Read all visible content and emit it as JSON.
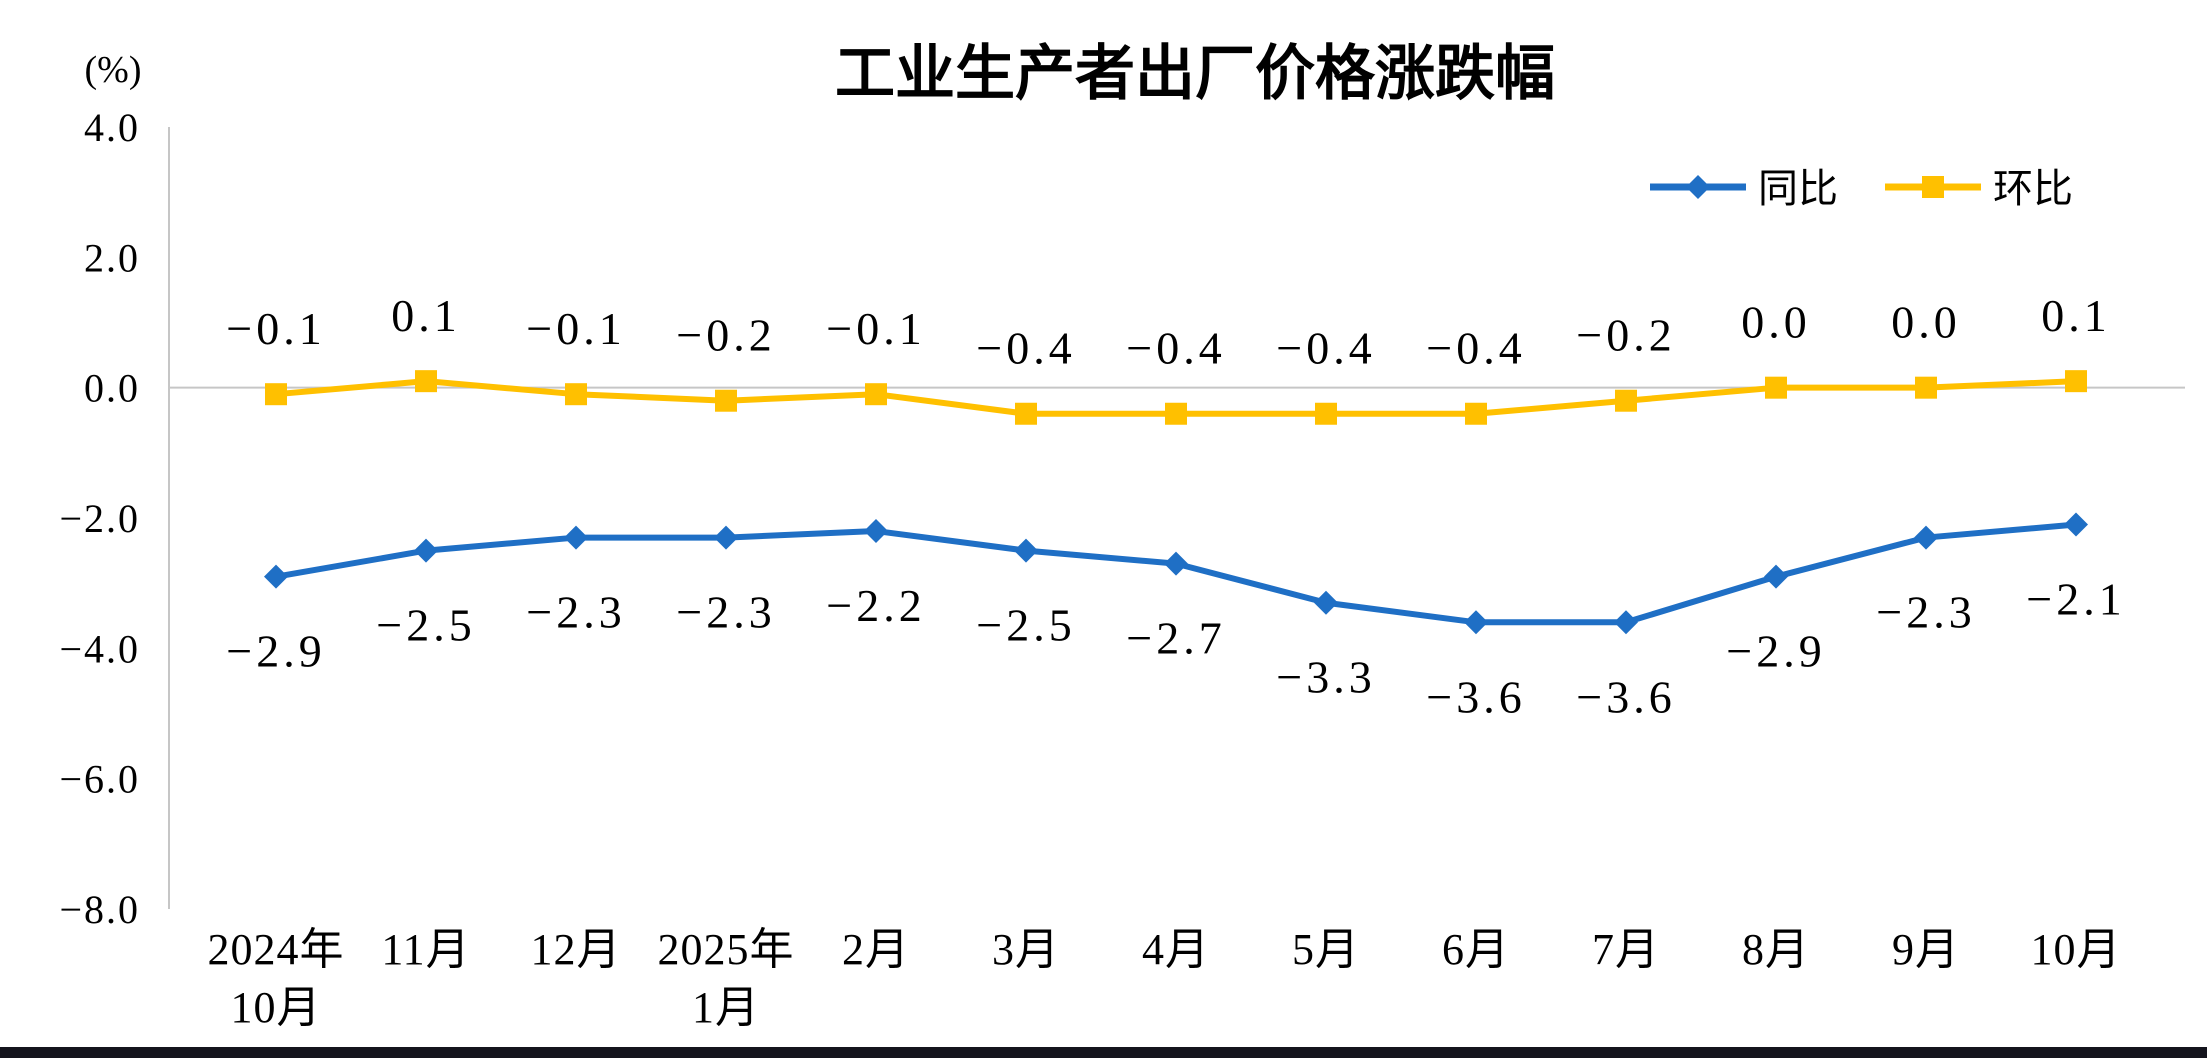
{
  "chart_data": {
    "type": "line",
    "title": "工业生产者出厂价格涨跌幅",
    "ylabel": "(%)",
    "xlabel": "",
    "ylim": [
      -8.0,
      4.0
    ],
    "grid": "zero-line-only",
    "legend_position": "top-right",
    "yticks": [
      4.0,
      2.0,
      0.0,
      -2.0,
      -4.0,
      -6.0,
      -8.0
    ],
    "ytick_labels": [
      "4.0",
      "2.0",
      "0.0",
      "−2.0",
      "−4.0",
      "−6.0",
      "−8.0"
    ],
    "categories": [
      "2024年10月",
      "11月",
      "12月",
      "2025年1月",
      "2月",
      "3月",
      "4月",
      "5月",
      "6月",
      "7月",
      "8月",
      "9月",
      "10月"
    ],
    "category_lines": [
      [
        "2024年",
        "10月"
      ],
      [
        "11月"
      ],
      [
        "12月"
      ],
      [
        "2025年",
        "1月"
      ],
      [
        "2月"
      ],
      [
        "3月"
      ],
      [
        "4月"
      ],
      [
        "5月"
      ],
      [
        "6月"
      ],
      [
        "7月"
      ],
      [
        "8月"
      ],
      [
        "9月"
      ],
      [
        "10月"
      ]
    ],
    "series": [
      {
        "key": "tongbi",
        "name": "同比",
        "color": "#1F6FC5",
        "marker": "diamond",
        "label_position": "below",
        "values": [
          -2.9,
          -2.5,
          -2.3,
          -2.3,
          -2.2,
          -2.5,
          -2.7,
          -3.3,
          -3.6,
          -3.6,
          -2.9,
          -2.3,
          -2.1
        ],
        "labels": [
          "−2.9",
          "−2.5",
          "−2.3",
          "−2.3",
          "−2.2",
          "−2.5",
          "−2.7",
          "−3.3",
          "−3.6",
          "−3.6",
          "−2.9",
          "−2.3",
          "−2.1"
        ]
      },
      {
        "key": "huanbi",
        "name": "环比",
        "color": "#FFC000",
        "marker": "square",
        "label_position": "above",
        "values": [
          -0.1,
          0.1,
          -0.1,
          -0.2,
          -0.1,
          -0.4,
          -0.4,
          -0.4,
          -0.4,
          -0.2,
          0.0,
          0.0,
          0.1
        ],
        "labels": [
          "−0.1",
          "0.1",
          "−0.1",
          "−0.2",
          "−0.1",
          "−0.4",
          "−0.4",
          "−0.4",
          "−0.4",
          "−0.2",
          "0.0",
          "0.0",
          "0.1"
        ]
      }
    ]
  }
}
